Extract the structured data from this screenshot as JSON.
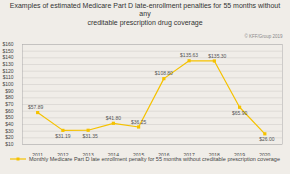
{
  "chart_data": {
    "type": "line",
    "title": "Examples of estimated Medicare Part D late-enrollment penalties for 55 months without any\ncreditable prescription drug coverage",
    "x": [
      2011,
      2012,
      2013,
      2014,
      2015,
      2016,
      2017,
      2018,
      2019,
      2020
    ],
    "series": [
      {
        "name": "Monthly Medicare Part D late enrollment penalty for 55 months without creditable prescription coverage",
        "color": "#F5C200",
        "marker": "square",
        "values": [
          57.89,
          31.19,
          31.35,
          41.8,
          36.25,
          108.8,
          135.63,
          135.3,
          65.9,
          26.0
        ],
        "value_labels": [
          "$57.89",
          "$31.19",
          "$31.35",
          "$41.80",
          "$36.25",
          "$108.80",
          "$135.63",
          "$135.30",
          "$65.90",
          "$26.00"
        ]
      }
    ],
    "xlim": [
      2010.4,
      2020.7
    ],
    "xticks": [
      2011,
      2012,
      2013,
      2014,
      2015,
      2016,
      2017,
      2018,
      2019,
      2020
    ],
    "ylim": [
      10,
      160
    ],
    "yticks": [
      {
        "value": 10,
        "label": "$10"
      },
      {
        "value": 20,
        "label": "$20"
      },
      {
        "value": 30,
        "label": "$30"
      },
      {
        "value": 40,
        "label": "$40"
      },
      {
        "value": 50,
        "label": "$50"
      },
      {
        "value": 60,
        "label": "$60"
      },
      {
        "value": 70,
        "label": "$70"
      },
      {
        "value": 80,
        "label": "$80"
      },
      {
        "value": 90,
        "label": "$90"
      },
      {
        "value": 100,
        "label": "$100"
      },
      {
        "value": 110,
        "label": "$110"
      },
      {
        "value": 120,
        "label": "$120"
      },
      {
        "value": 130,
        "label": "$130"
      },
      {
        "value": 140,
        "label": "$140"
      },
      {
        "value": 150,
        "label": "$150"
      },
      {
        "value": 160,
        "label": "$160"
      }
    ],
    "grid": true,
    "data_labels": true,
    "legend": "bottom",
    "annotations": [
      "© KFF/Group 2019"
    ]
  }
}
